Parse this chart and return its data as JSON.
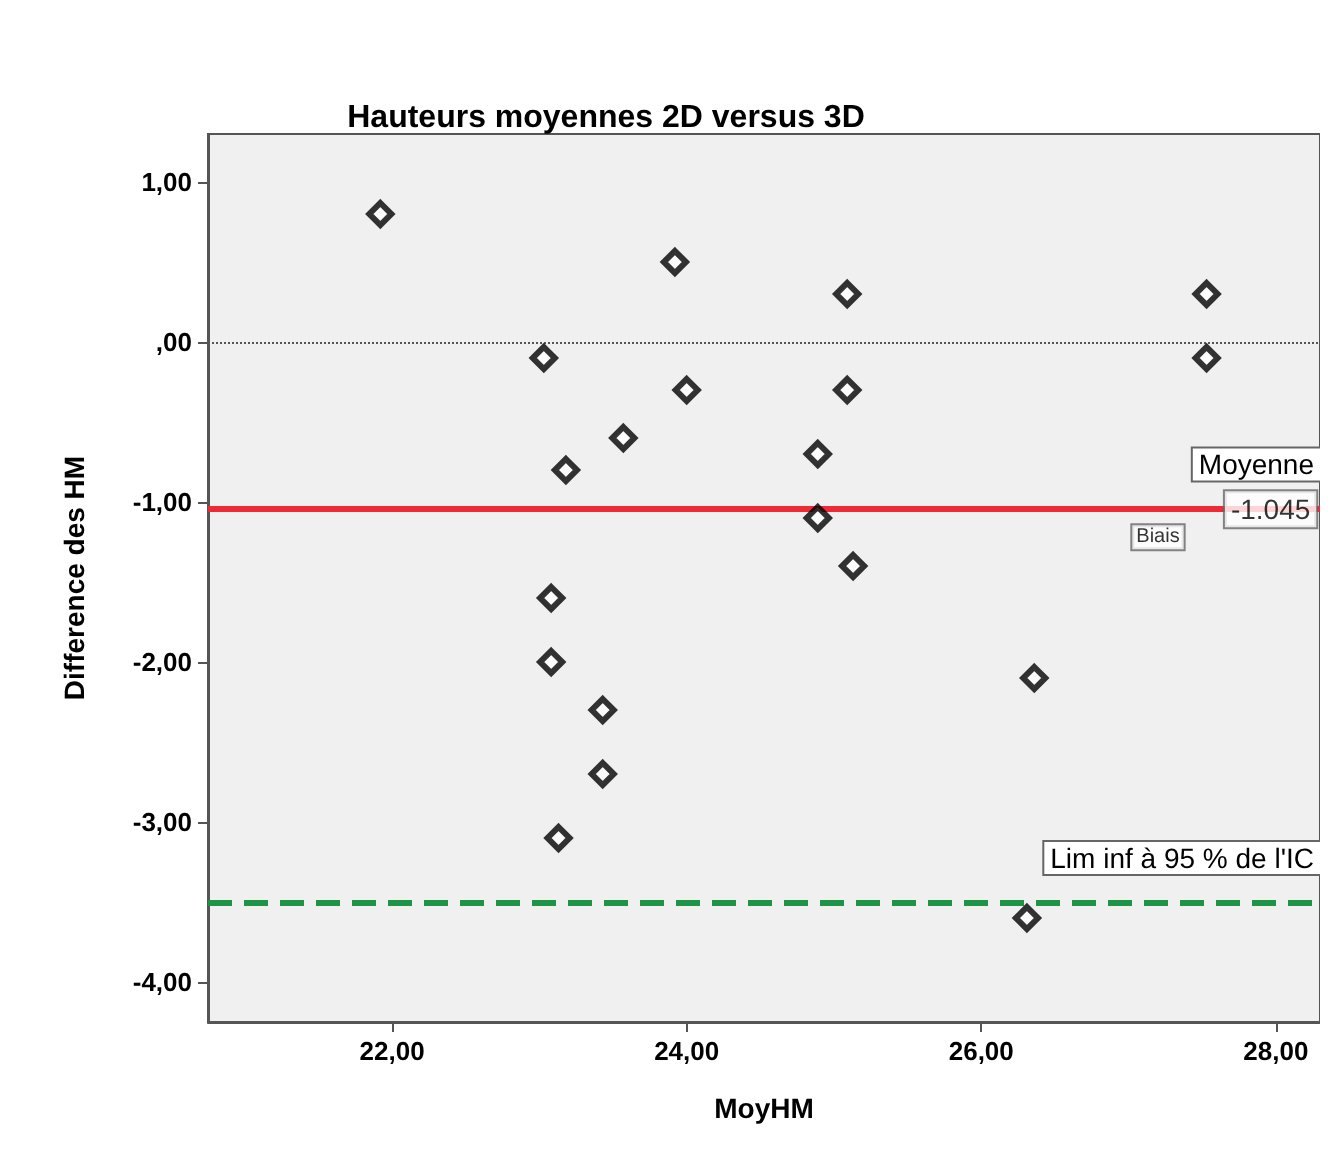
{
  "chart_data": {
    "type": "scatter",
    "title": "Hauteurs moyennes 2D versus 3D",
    "xlabel": "MoyHM",
    "ylabel": "Difference des HM",
    "x": [
      21.92,
      23.92,
      23.03,
      24.0,
      23.57,
      23.18,
      23.08,
      23.08,
      23.43,
      23.43,
      23.13,
      25.09,
      25.09,
      24.89,
      24.89,
      25.13,
      26.36,
      26.31,
      27.53,
      27.53
    ],
    "series": [
      {
        "color": "#000000",
        "values": [
          0.8,
          0.5,
          -0.1,
          -0.3,
          -0.6,
          -0.8,
          -1.6,
          -2.0,
          -2.3,
          -2.7,
          -3.1,
          0.3,
          -0.3,
          -0.7,
          -1.1,
          -1.4,
          -2.1,
          -3.6,
          0.3,
          -0.1
        ]
      }
    ],
    "marker": "diamond",
    "grid": false,
    "xlim": [
      20.75,
      28.3
    ],
    "ylim": [
      -4.25,
      1.3
    ],
    "xticks": [
      {
        "value": 22,
        "label": "22,00"
      },
      {
        "value": 24,
        "label": "24,00"
      },
      {
        "value": 26,
        "label": "26,00"
      },
      {
        "value": 28,
        "label": "28,00"
      }
    ],
    "yticks": [
      {
        "value": 1,
        "label": "1,00"
      },
      {
        "value": 0,
        "label": ",00"
      },
      {
        "value": -1,
        "label": "-1,00"
      },
      {
        "value": -2,
        "label": "-2,00"
      },
      {
        "value": -3,
        "label": "-3,00"
      },
      {
        "value": -4,
        "label": "-4,00"
      }
    ],
    "ref_lines": [
      {
        "axis": "y",
        "value": 0,
        "label": null,
        "color": "#555555",
        "line_style": "dotted"
      },
      {
        "axis": "y",
        "value": -1.045,
        "label": "Moyenne",
        "color": "#ee2a35",
        "line_style": "solid"
      },
      {
        "axis": "y",
        "value": -3.5,
        "label": "Lim inf à 95 % de l'IC",
        "color": "#1e9447",
        "line_style": "dashed"
      }
    ],
    "annotations": [
      {
        "text": "-1.045",
        "x": 27.6,
        "y": -1.045
      },
      {
        "text": "Biais",
        "x": 27.2,
        "y": -1.045
      }
    ]
  }
}
